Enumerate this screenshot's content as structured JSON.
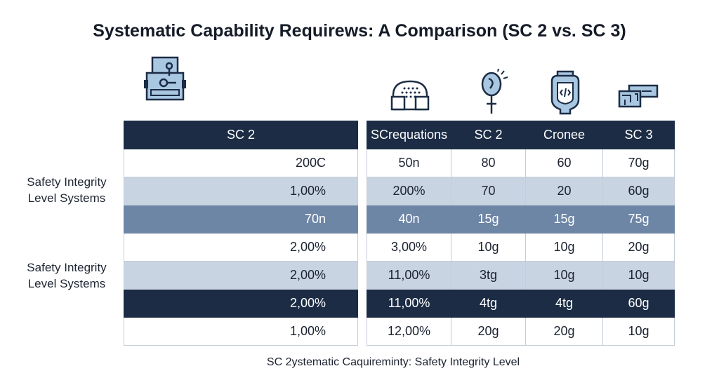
{
  "title": "Systematic Capability Requirews: A Comparison (SC 2 vs. SC 3)",
  "icons": [
    "document-icon",
    "building-icon",
    "bulb-icon",
    "gauge-icon",
    "circuit-icon"
  ],
  "row_group_labels": [
    [
      "Safety Integrity",
      "Level Systems"
    ],
    [
      "Safety Integrity",
      "Level Systems"
    ]
  ],
  "caption": "SC 2ystematic Caquireminty: Safety Integrity Level",
  "chart_data": {
    "type": "table",
    "title": "Systematic Capability Requirews: A Comparison (SC 2 vs. SC 3)",
    "left_table": {
      "header": "SC 2",
      "rows": [
        "200C",
        "1,00%",
        "70n",
        "2,00%",
        "2,00%",
        "2,00%",
        "1,00%"
      ]
    },
    "right_table": {
      "columns": [
        "SCrequations",
        "SC 2",
        "Cronee",
        "SC 3"
      ],
      "rows": [
        [
          "50n",
          "80",
          "60",
          "70g"
        ],
        [
          "200%",
          "70",
          "20",
          "60g"
        ],
        [
          "40n",
          "15g",
          "15g",
          "75g"
        ],
        [
          "3,00%",
          "10g",
          "10g",
          "20g"
        ],
        [
          "11,00%",
          "3tg",
          "10g",
          "10g"
        ],
        [
          "11,00%",
          "4tg",
          "4tg",
          "60g"
        ],
        [
          "12,00%",
          "20g",
          "20g",
          "10g"
        ]
      ]
    },
    "row_shading": [
      "white",
      "light",
      "medium",
      "white",
      "light",
      "dark",
      "white"
    ],
    "colors": {
      "dark": "#1c2c45",
      "medium": "#6e86a6",
      "light": "#c9d4e3",
      "icon_fill": "#a9c7e0",
      "icon_stroke": "#1c2c45"
    }
  }
}
